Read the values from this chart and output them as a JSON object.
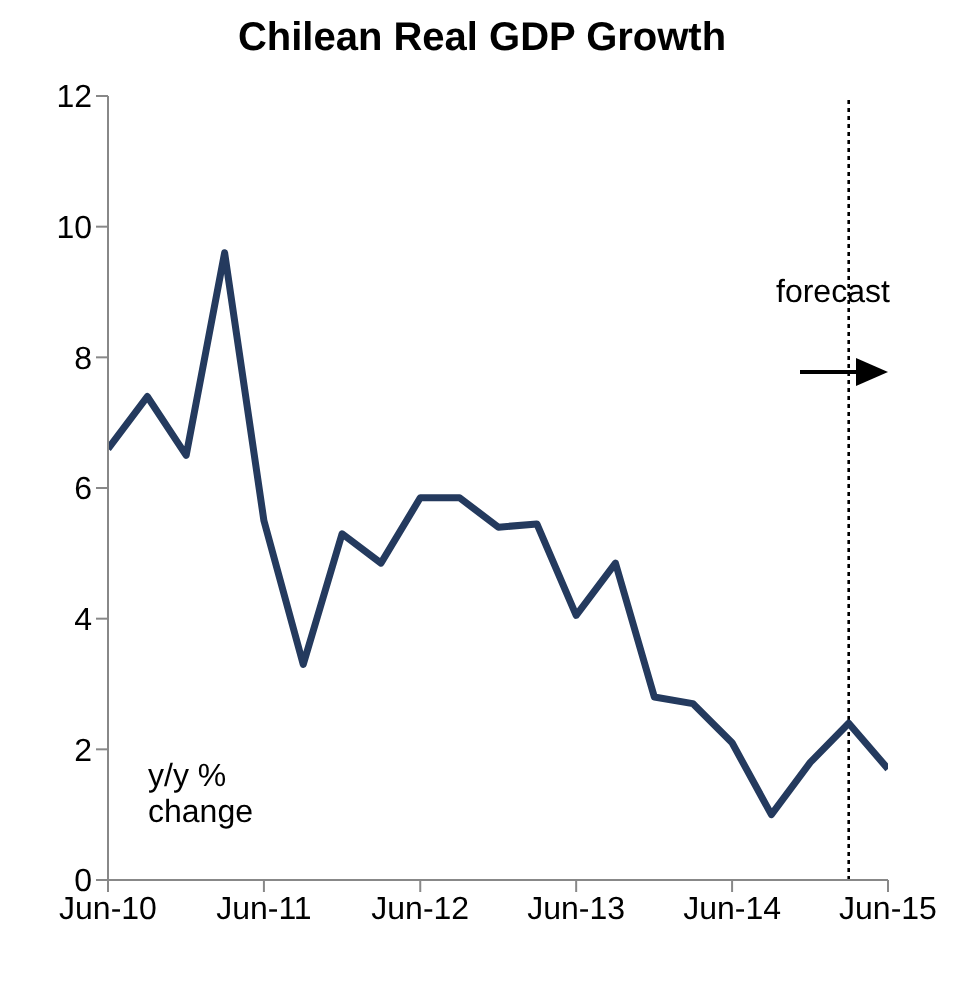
{
  "chart_data": {
    "type": "line",
    "title": "Chilean Real GDP Growth",
    "ylabel": "y/y % change",
    "x": [
      "2010-06",
      "2010-09",
      "2010-12",
      "2011-03",
      "2011-06",
      "2011-09",
      "2011-12",
      "2012-03",
      "2012-06",
      "2012-09",
      "2012-12",
      "2013-03",
      "2013-06",
      "2013-09",
      "2013-12",
      "2014-03",
      "2014-06",
      "2014-09",
      "2014-12",
      "2015-03",
      "2015-06"
    ],
    "series": [
      {
        "color": "#243a5e",
        "values": [
          6.6,
          7.4,
          6.5,
          9.6,
          5.5,
          3.3,
          5.3,
          4.85,
          5.85,
          5.85,
          5.4,
          5.45,
          4.05,
          4.85,
          2.8,
          2.7,
          2.1,
          1.0,
          1.8,
          2.4,
          1.7
        ]
      }
    ],
    "xlim": [
      "2010-06",
      "2015-06"
    ],
    "xticks": [
      {
        "value": "2010-06",
        "label": "Jun-10"
      },
      {
        "value": "2011-06",
        "label": "Jun-11"
      },
      {
        "value": "2012-06",
        "label": "Jun-12"
      },
      {
        "value": "2013-06",
        "label": "Jun-13"
      },
      {
        "value": "2014-06",
        "label": "Jun-14"
      },
      {
        "value": "2015-06",
        "label": "Jun-15"
      }
    ],
    "ylim": [
      0,
      12
    ],
    "yticks": [
      0,
      2,
      4,
      6,
      8,
      10,
      12
    ],
    "ref_lines": [
      {
        "axis": "x",
        "value": "2015-03",
        "color": "#000000",
        "line_style": "dotted"
      }
    ],
    "annotations": [
      "forecast"
    ],
    "grid": false,
    "legend": false,
    "marker": "none",
    "line_style": "solid"
  }
}
